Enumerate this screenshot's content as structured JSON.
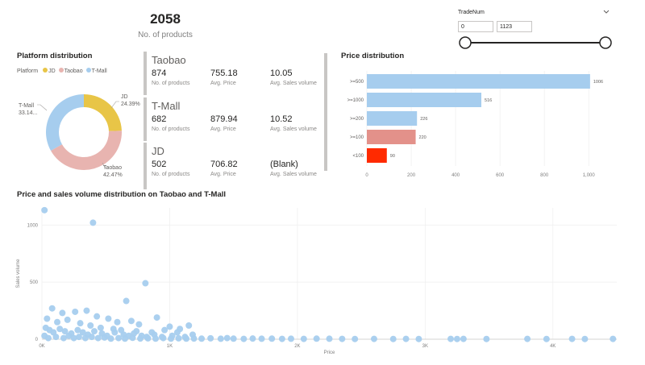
{
  "kpi": {
    "value": "2058",
    "label": "No. of products"
  },
  "slicer": {
    "title": "TradeNum",
    "min": "0",
    "max": "1123",
    "chevron": "chevron-down-icon"
  },
  "platform_section": {
    "title": "Platform distribution",
    "legend_title": "Platform",
    "legend": [
      "JD",
      "Taobao",
      "T-Mall"
    ]
  },
  "donut": {
    "colors": {
      "JD": "#e8c547",
      "Taobao": "#e8b4b0",
      "T-Mall": "#a6cdee"
    },
    "labels": [
      {
        "name": "JD",
        "pct": "24.39%"
      },
      {
        "name": "T-Mall",
        "pct": "33.14..."
      },
      {
        "name": "Taobao",
        "pct": "42.47%"
      }
    ]
  },
  "cards": [
    {
      "name": "Taobao",
      "products": "874",
      "price": "755.18",
      "sales": "10.05"
    },
    {
      "name": "T-Mall",
      "products": "682",
      "price": "879.94",
      "sales": "10.52"
    },
    {
      "name": "JD",
      "products": "502",
      "price": "706.82",
      "sales": "(Blank)"
    }
  ],
  "card_labels": {
    "products": "No. of products",
    "price": "Avg. Price",
    "sales": "Avg. Sales volume"
  },
  "price_dist": {
    "title": "Price distribution"
  },
  "scatter_section": {
    "title": "Price and sales volume distribution on Taobao and T-Mall"
  },
  "chart_data": [
    {
      "type": "pie",
      "title": "Platform distribution",
      "categories": [
        "JD",
        "Taobao",
        "T-Mall"
      ],
      "values": [
        24.39,
        42.47,
        33.14
      ]
    },
    {
      "type": "bar",
      "orientation": "horizontal",
      "title": "Price distribution",
      "categories": [
        ">=500",
        ">=1000",
        ">=200",
        ">=100",
        "<100"
      ],
      "values": [
        1006,
        516,
        226,
        220,
        90
      ],
      "bar_colors": [
        "#a6cdee",
        "#a6cdee",
        "#a6cdee",
        "#e3918a",
        "#ff2a00"
      ],
      "xticks": [
        "0",
        "200",
        "400",
        "600",
        "800",
        "1,000"
      ],
      "xlim": [
        0,
        1050
      ]
    },
    {
      "type": "scatter",
      "title": "Price and sales volume distribution on Taobao and T-Mall",
      "xlabel": "Price",
      "ylabel": "Sales volume",
      "xticks": [
        "0K",
        "1K",
        "2K",
        "3K",
        "4K"
      ],
      "yticks": [
        "0",
        "500",
        "1000"
      ],
      "xlim": [
        0,
        4500
      ],
      "ylim": [
        0,
        1150
      ],
      "points": [
        [
          20,
          1130
        ],
        [
          400,
          1020
        ],
        [
          810,
          490
        ],
        [
          660,
          335
        ],
        [
          80,
          270
        ],
        [
          160,
          230
        ],
        [
          260,
          240
        ],
        [
          350,
          250
        ],
        [
          430,
          200
        ],
        [
          520,
          180
        ],
        [
          590,
          150
        ],
        [
          700,
          160
        ],
        [
          760,
          130
        ],
        [
          900,
          190
        ],
        [
          1000,
          110
        ],
        [
          1080,
          90
        ],
        [
          1150,
          120
        ],
        [
          40,
          180
        ],
        [
          120,
          150
        ],
        [
          200,
          170
        ],
        [
          300,
          140
        ],
        [
          380,
          120
        ],
        [
          460,
          100
        ],
        [
          560,
          90
        ],
        [
          620,
          80
        ],
        [
          740,
          70
        ],
        [
          860,
          60
        ],
        [
          960,
          80
        ],
        [
          1060,
          60
        ],
        [
          30,
          100
        ],
        [
          60,
          80
        ],
        [
          90,
          60
        ],
        [
          140,
          90
        ],
        [
          180,
          70
        ],
        [
          230,
          50
        ],
        [
          280,
          80
        ],
        [
          320,
          60
        ],
        [
          360,
          40
        ],
        [
          410,
          70
        ],
        [
          470,
          50
        ],
        [
          510,
          30
        ],
        [
          570,
          60
        ],
        [
          640,
          40
        ],
        [
          680,
          30
        ],
        [
          720,
          50
        ],
        [
          780,
          30
        ],
        [
          820,
          20
        ],
        [
          880,
          40
        ],
        [
          940,
          20
        ],
        [
          1020,
          30
        ],
        [
          1120,
          20
        ],
        [
          1180,
          40
        ],
        [
          20,
          30
        ],
        [
          50,
          10
        ],
        [
          110,
          20
        ],
        [
          170,
          10
        ],
        [
          210,
          30
        ],
        [
          250,
          10
        ],
        [
          290,
          20
        ],
        [
          340,
          10
        ],
        [
          390,
          20
        ],
        [
          440,
          10
        ],
        [
          490,
          15
        ],
        [
          540,
          5
        ],
        [
          600,
          10
        ],
        [
          650,
          5
        ],
        [
          710,
          12
        ],
        [
          770,
          6
        ],
        [
          830,
          8
        ],
        [
          890,
          5
        ],
        [
          950,
          10
        ],
        [
          1010,
          5
        ],
        [
          1070,
          8
        ],
        [
          1130,
          5
        ],
        [
          1190,
          6
        ],
        [
          1250,
          5
        ],
        [
          1320,
          8
        ],
        [
          1400,
          4
        ],
        [
          1450,
          10
        ],
        [
          1500,
          5
        ],
        [
          1580,
          3
        ],
        [
          1650,
          6
        ],
        [
          1720,
          4
        ],
        [
          1800,
          5
        ],
        [
          1880,
          3
        ],
        [
          1950,
          4
        ],
        [
          2050,
          3
        ],
        [
          2150,
          5
        ],
        [
          2250,
          4
        ],
        [
          2350,
          3
        ],
        [
          2450,
          2
        ],
        [
          2600,
          3
        ],
        [
          2750,
          2
        ],
        [
          2850,
          3
        ],
        [
          2950,
          2
        ],
        [
          3200,
          3
        ],
        [
          3250,
          2
        ],
        [
          3300,
          3
        ],
        [
          3480,
          2
        ],
        [
          3800,
          3
        ],
        [
          3950,
          2
        ],
        [
          4150,
          3
        ],
        [
          4250,
          2
        ],
        [
          4470,
          3
        ]
      ]
    }
  ]
}
